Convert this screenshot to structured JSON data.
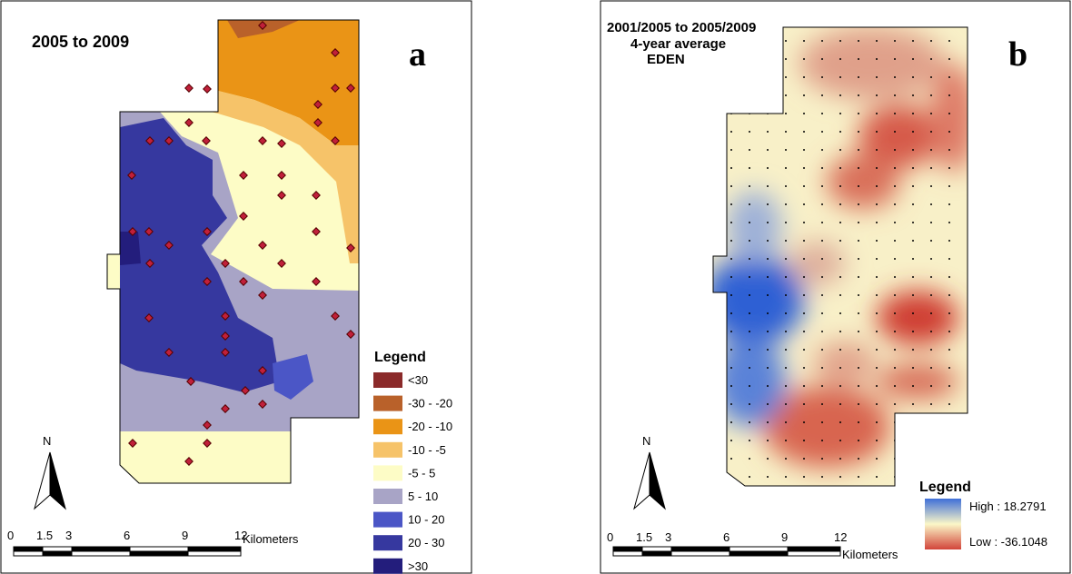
{
  "panels": [
    {
      "title": "2005  to 2009",
      "label": "a",
      "north": "N",
      "legend": {
        "title": "Legend",
        "items": [
          {
            "label": "<30",
            "color": "#8b2a2a"
          },
          {
            "label": "-30 - -20",
            "color": "#b9612a"
          },
          {
            "label": "-20 - -10",
            "color": "#ea9416"
          },
          {
            "label": "-10 - -5",
            "color": "#f6c369"
          },
          {
            "label": "-5 - 5",
            "color": "#fdfcc6"
          },
          {
            "label": "5 - 10",
            "color": "#a8a4c6"
          },
          {
            "label": "10 - 20",
            "color": "#4b56c6"
          },
          {
            "label": "20 - 30",
            "color": "#36389f"
          },
          {
            "label": ">30",
            "color": "#231d7c"
          }
        ]
      },
      "scale": {
        "ticks": [
          "0",
          "1.5",
          "3",
          "6",
          "9",
          "12"
        ],
        "unit": "Kilometers"
      }
    },
    {
      "title_lines": [
        "2001/2005  to 2005/2009",
        "4-year average",
        "EDEN"
      ],
      "label": "b",
      "north": "N",
      "legend": {
        "title": "Legend",
        "high": "High : 18.2791",
        "low": "Low : -36.1048"
      },
      "scale": {
        "ticks": [
          "0",
          "1.5",
          "3",
          "6",
          "9",
          "12"
        ],
        "unit": "Kilometers"
      }
    }
  ]
}
